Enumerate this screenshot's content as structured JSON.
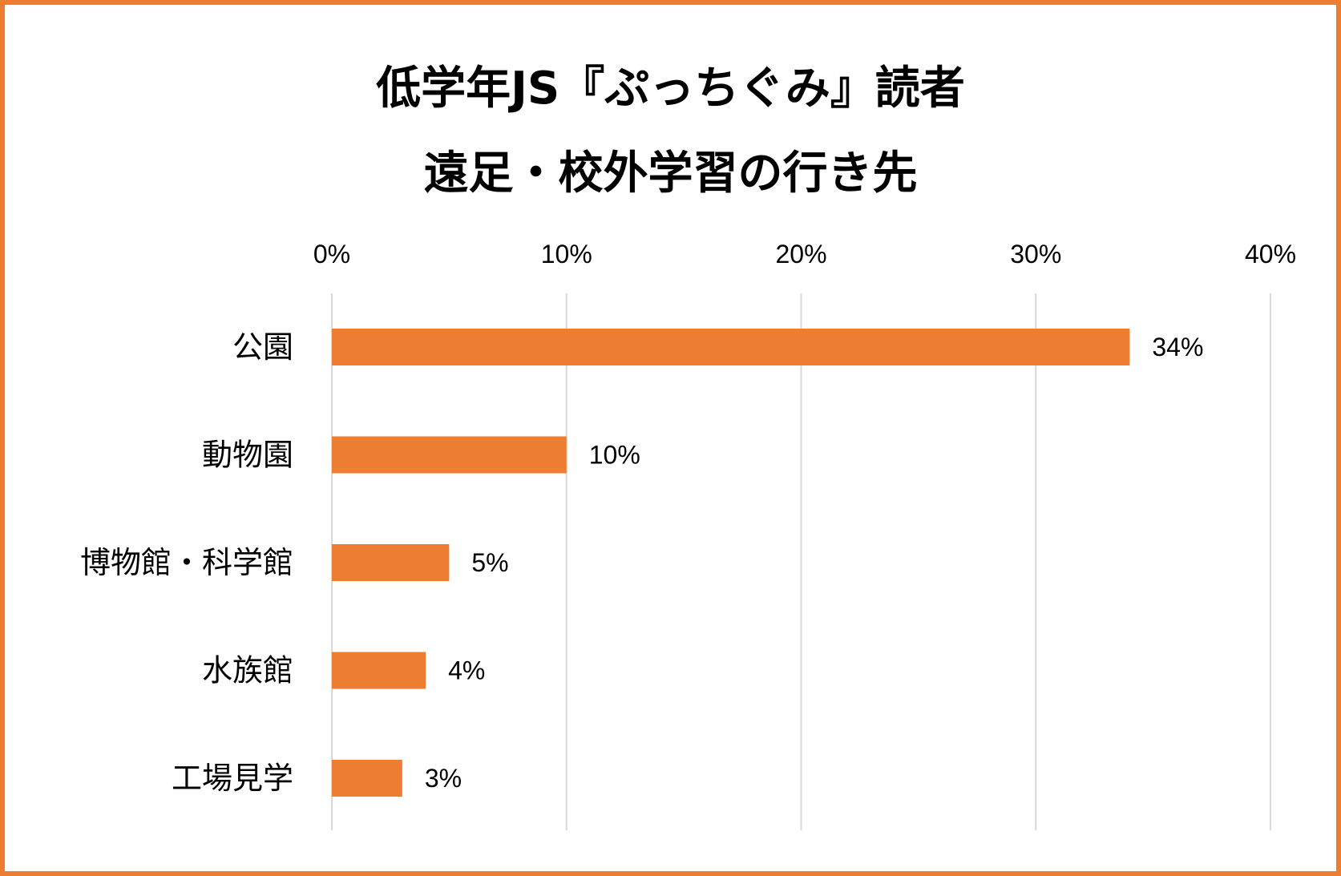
{
  "chart_data": {
    "type": "bar",
    "orientation": "horizontal",
    "title": "低学年JS『ぷっちぐみ』読者",
    "subtitle": "遠足・校外学習の行き先",
    "categories": [
      "公園",
      "動物園",
      "博物館・科学館",
      "水族館",
      "工場見学"
    ],
    "values": [
      34,
      10,
      5,
      4,
      3
    ],
    "data_labels": [
      "34%",
      "10%",
      "5%",
      "4%",
      "3%"
    ],
    "x_ticks": [
      0,
      10,
      20,
      30,
      40
    ],
    "x_tick_labels": [
      "0%",
      "10%",
      "20%",
      "30%",
      "40%"
    ],
    "xlim": [
      0,
      40
    ],
    "x_axis_position": "top",
    "xlabel": "",
    "ylabel": "",
    "grid": true,
    "legend": "none",
    "bar_color": "#ED7D31",
    "border_color": "#ED7D31",
    "gridline_color": "#D9D9D9"
  }
}
